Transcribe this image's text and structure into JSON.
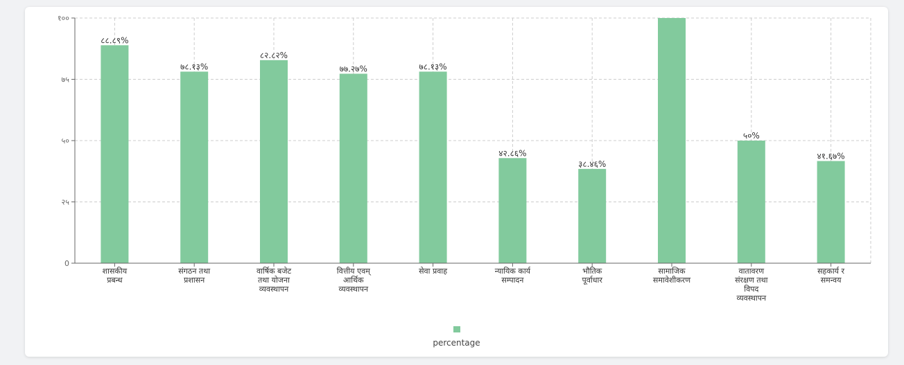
{
  "chart_data": {
    "type": "bar",
    "categories": [
      [
        "शासकीय",
        "प्रबन्ध"
      ],
      [
        "संगठन तथा",
        "प्रशासन"
      ],
      [
        "वार्षिक बजेट",
        "तथा योजना",
        "व्यवस्थापन"
      ],
      [
        "वित्तीय एवम्",
        "आर्थिक",
        "व्यवस्थापन"
      ],
      [
        "सेवा प्रवाह"
      ],
      [
        "न्यायिक कार्य",
        "सम्पादन"
      ],
      [
        "भौतिक",
        "पूर्वाधार"
      ],
      [
        "सामाजिक",
        "समावेशीकरण"
      ],
      [
        "वातावरण",
        "संरक्षण तथा",
        "विपद",
        "व्यवस्थापन"
      ],
      [
        "सहकार्य र",
        "समन्वय"
      ]
    ],
    "series": [
      {
        "name": "percentage",
        "values": [
          88.89,
          78.13,
          82.82,
          77.27,
          78.13,
          42.86,
          38.46,
          100,
          50,
          41.67
        ],
        "labels": [
          "८८.८९%",
          "७८.१३%",
          "८२.८२%",
          "७७.२७%",
          "७८.१३%",
          "४२.८६%",
          "३८.४६%",
          "",
          "५०%",
          "४१.६७%"
        ]
      }
    ],
    "ylim": [
      0,
      100
    ],
    "yticks": [
      0,
      25,
      50,
      75,
      100
    ],
    "ytick_labels": [
      "0",
      "२५",
      "५०",
      "७५",
      "१००"
    ],
    "grid": true,
    "legend_position": "bottom",
    "colors": {
      "bar": "#82ca9d",
      "grid": "#cccccc",
      "axis": "#666666",
      "text": "#333333"
    }
  },
  "legend": {
    "label": "percentage"
  }
}
